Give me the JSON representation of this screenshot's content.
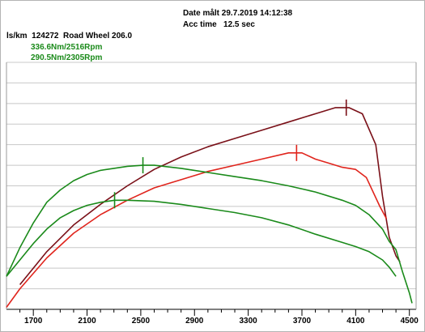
{
  "header": {
    "date_line": "Date målt 29.7.2019 14:12:38",
    "acc_line": "Acc time   12.5 sec",
    "id_line": "ls/km  124272  Road Wheel 206.0",
    "torque1": "336.6Nm/2516Rpm",
    "torque2": "290.5Nm/2305Rpm"
  },
  "chart_data": {
    "type": "line",
    "x_ticks": [
      1700,
      2100,
      2500,
      2900,
      3300,
      3700,
      4100,
      4500
    ],
    "xlim": [
      1500,
      4550
    ],
    "ylim": [
      0,
      12
    ],
    "grid": true,
    "series": [
      {
        "color": "#7a1018",
        "marker_x": 4030,
        "points": [
          [
            1600,
            1.2
          ],
          [
            1800,
            2.8
          ],
          [
            2000,
            4.1
          ],
          [
            2200,
            5.1
          ],
          [
            2400,
            6.0
          ],
          [
            2600,
            6.8
          ],
          [
            2800,
            7.4
          ],
          [
            3000,
            7.9
          ],
          [
            3200,
            8.3
          ],
          [
            3400,
            8.7
          ],
          [
            3600,
            9.1
          ],
          [
            3800,
            9.5
          ],
          [
            3950,
            9.8
          ],
          [
            4050,
            9.8
          ],
          [
            4150,
            9.5
          ],
          [
            4250,
            8.0
          ],
          [
            4300,
            5.5
          ],
          [
            4350,
            3.5
          ],
          [
            4400,
            2.6
          ],
          [
            4430,
            2.3
          ]
        ]
      },
      {
        "color": "#e0241c",
        "marker_x": 3660,
        "points": [
          [
            1500,
            0.1
          ],
          [
            1600,
            1.0
          ],
          [
            1800,
            2.5
          ],
          [
            2000,
            3.7
          ],
          [
            2200,
            4.6
          ],
          [
            2400,
            5.3
          ],
          [
            2600,
            5.9
          ],
          [
            2800,
            6.3
          ],
          [
            3000,
            6.7
          ],
          [
            3200,
            7.0
          ],
          [
            3400,
            7.3
          ],
          [
            3600,
            7.6
          ],
          [
            3700,
            7.6
          ],
          [
            3800,
            7.3
          ],
          [
            3900,
            7.1
          ],
          [
            4000,
            6.9
          ],
          [
            4100,
            6.8
          ],
          [
            4180,
            6.4
          ],
          [
            4280,
            5.0
          ],
          [
            4330,
            4.4
          ]
        ]
      },
      {
        "color": "#1a8a1a",
        "marker_x": 2516,
        "points": [
          [
            1500,
            1.6
          ],
          [
            1600,
            3.0
          ],
          [
            1700,
            4.2
          ],
          [
            1800,
            5.2
          ],
          [
            1900,
            5.8
          ],
          [
            2000,
            6.25
          ],
          [
            2100,
            6.55
          ],
          [
            2200,
            6.75
          ],
          [
            2300,
            6.85
          ],
          [
            2400,
            6.95
          ],
          [
            2516,
            7.0
          ],
          [
            2600,
            7.0
          ],
          [
            2800,
            6.85
          ],
          [
            3000,
            6.65
          ],
          [
            3200,
            6.45
          ],
          [
            3400,
            6.25
          ],
          [
            3600,
            6.0
          ],
          [
            3800,
            5.7
          ],
          [
            4000,
            5.3
          ],
          [
            4100,
            5.05
          ],
          [
            4200,
            4.6
          ],
          [
            4300,
            3.9
          ],
          [
            4350,
            3.3
          ],
          [
            4400,
            2.9
          ],
          [
            4450,
            1.8
          ],
          [
            4500,
            0.8
          ],
          [
            4520,
            0.3
          ]
        ]
      },
      {
        "color": "#1a8a1a",
        "marker_x": 2305,
        "points": [
          [
            1500,
            1.6
          ],
          [
            1600,
            2.4
          ],
          [
            1700,
            3.2
          ],
          [
            1800,
            3.9
          ],
          [
            1900,
            4.45
          ],
          [
            2000,
            4.8
          ],
          [
            2100,
            5.05
          ],
          [
            2200,
            5.2
          ],
          [
            2305,
            5.3
          ],
          [
            2400,
            5.3
          ],
          [
            2600,
            5.25
          ],
          [
            2800,
            5.1
          ],
          [
            3000,
            4.9
          ],
          [
            3200,
            4.7
          ],
          [
            3400,
            4.45
          ],
          [
            3600,
            4.1
          ],
          [
            3800,
            3.65
          ],
          [
            4000,
            3.25
          ],
          [
            4100,
            3.05
          ],
          [
            4200,
            2.8
          ],
          [
            4300,
            2.4
          ],
          [
            4350,
            2.05
          ],
          [
            4400,
            1.6
          ]
        ]
      }
    ]
  }
}
